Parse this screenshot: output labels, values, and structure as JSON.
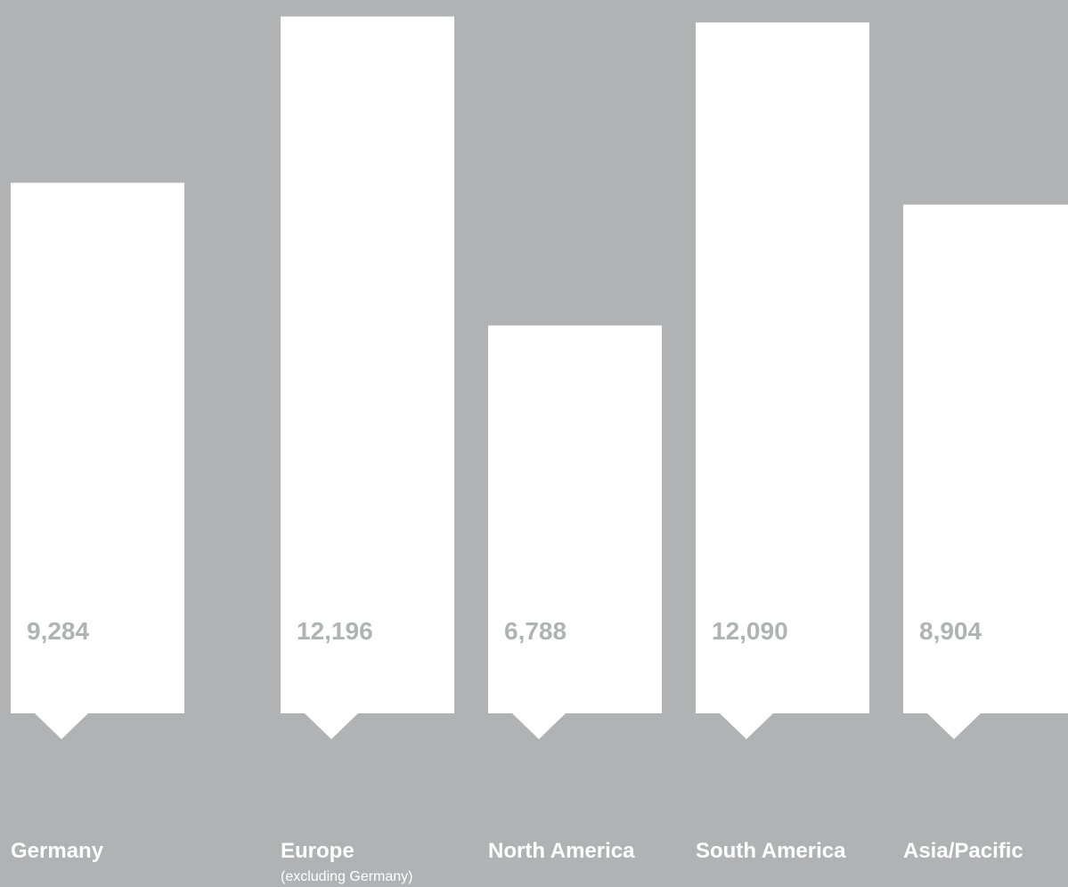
{
  "chart_data": {
    "type": "bar",
    "categories": [
      "Germany",
      "Europe",
      "North America",
      "South America",
      "Asia/Pacific"
    ],
    "category_sublabels": [
      "",
      "(excluding Germany)",
      "",
      "",
      ""
    ],
    "values": [
      9284,
      12196,
      6788,
      12090,
      8904
    ],
    "value_labels": [
      "9,284",
      "12,196",
      "6,788",
      "12,090",
      "8,904"
    ],
    "ylim": [
      0,
      12250
    ],
    "grid": false,
    "title": "",
    "xlabel": "",
    "ylabel": ""
  },
  "colors": {
    "background": "#b1b2b4",
    "bar": "#ffffff",
    "value_text": "#b1b2b4",
    "category_text": "#ffffff"
  }
}
